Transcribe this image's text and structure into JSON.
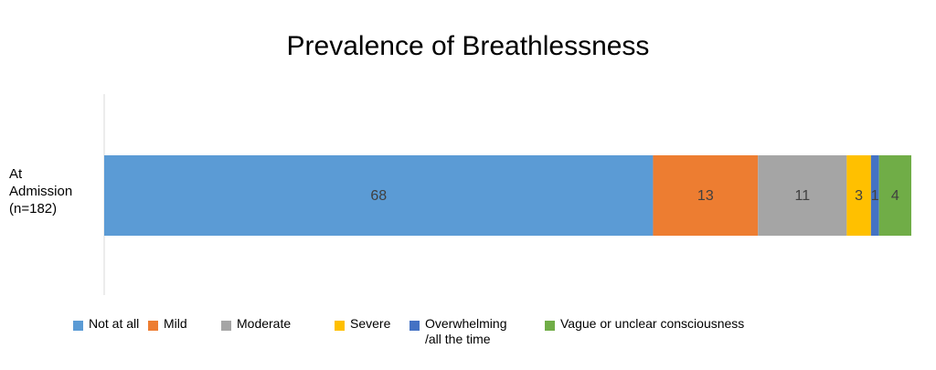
{
  "chart_data": {
    "type": "bar",
    "orientation": "horizontal",
    "stacked": true,
    "title": "Prevalence of Breathlessness",
    "categories": [
      "At Admission (n=182)"
    ],
    "xlim": [
      0,
      100
    ],
    "series": [
      {
        "name": "Not at all",
        "color": "#5b9bd5",
        "values": [
          68
        ]
      },
      {
        "name": "Mild",
        "color": "#ed7d31",
        "values": [
          13
        ]
      },
      {
        "name": "Moderate",
        "color": "#a5a5a5",
        "values": [
          11
        ]
      },
      {
        "name": "Severe",
        "color": "#ffc000",
        "values": [
          3
        ]
      },
      {
        "name": "Overwhelming /all the time",
        "color": "#4472c4",
        "values": [
          1
        ]
      },
      {
        "name": "Vague or unclear consciousness",
        "color": "#70ad47",
        "values": [
          4
        ]
      }
    ]
  }
}
